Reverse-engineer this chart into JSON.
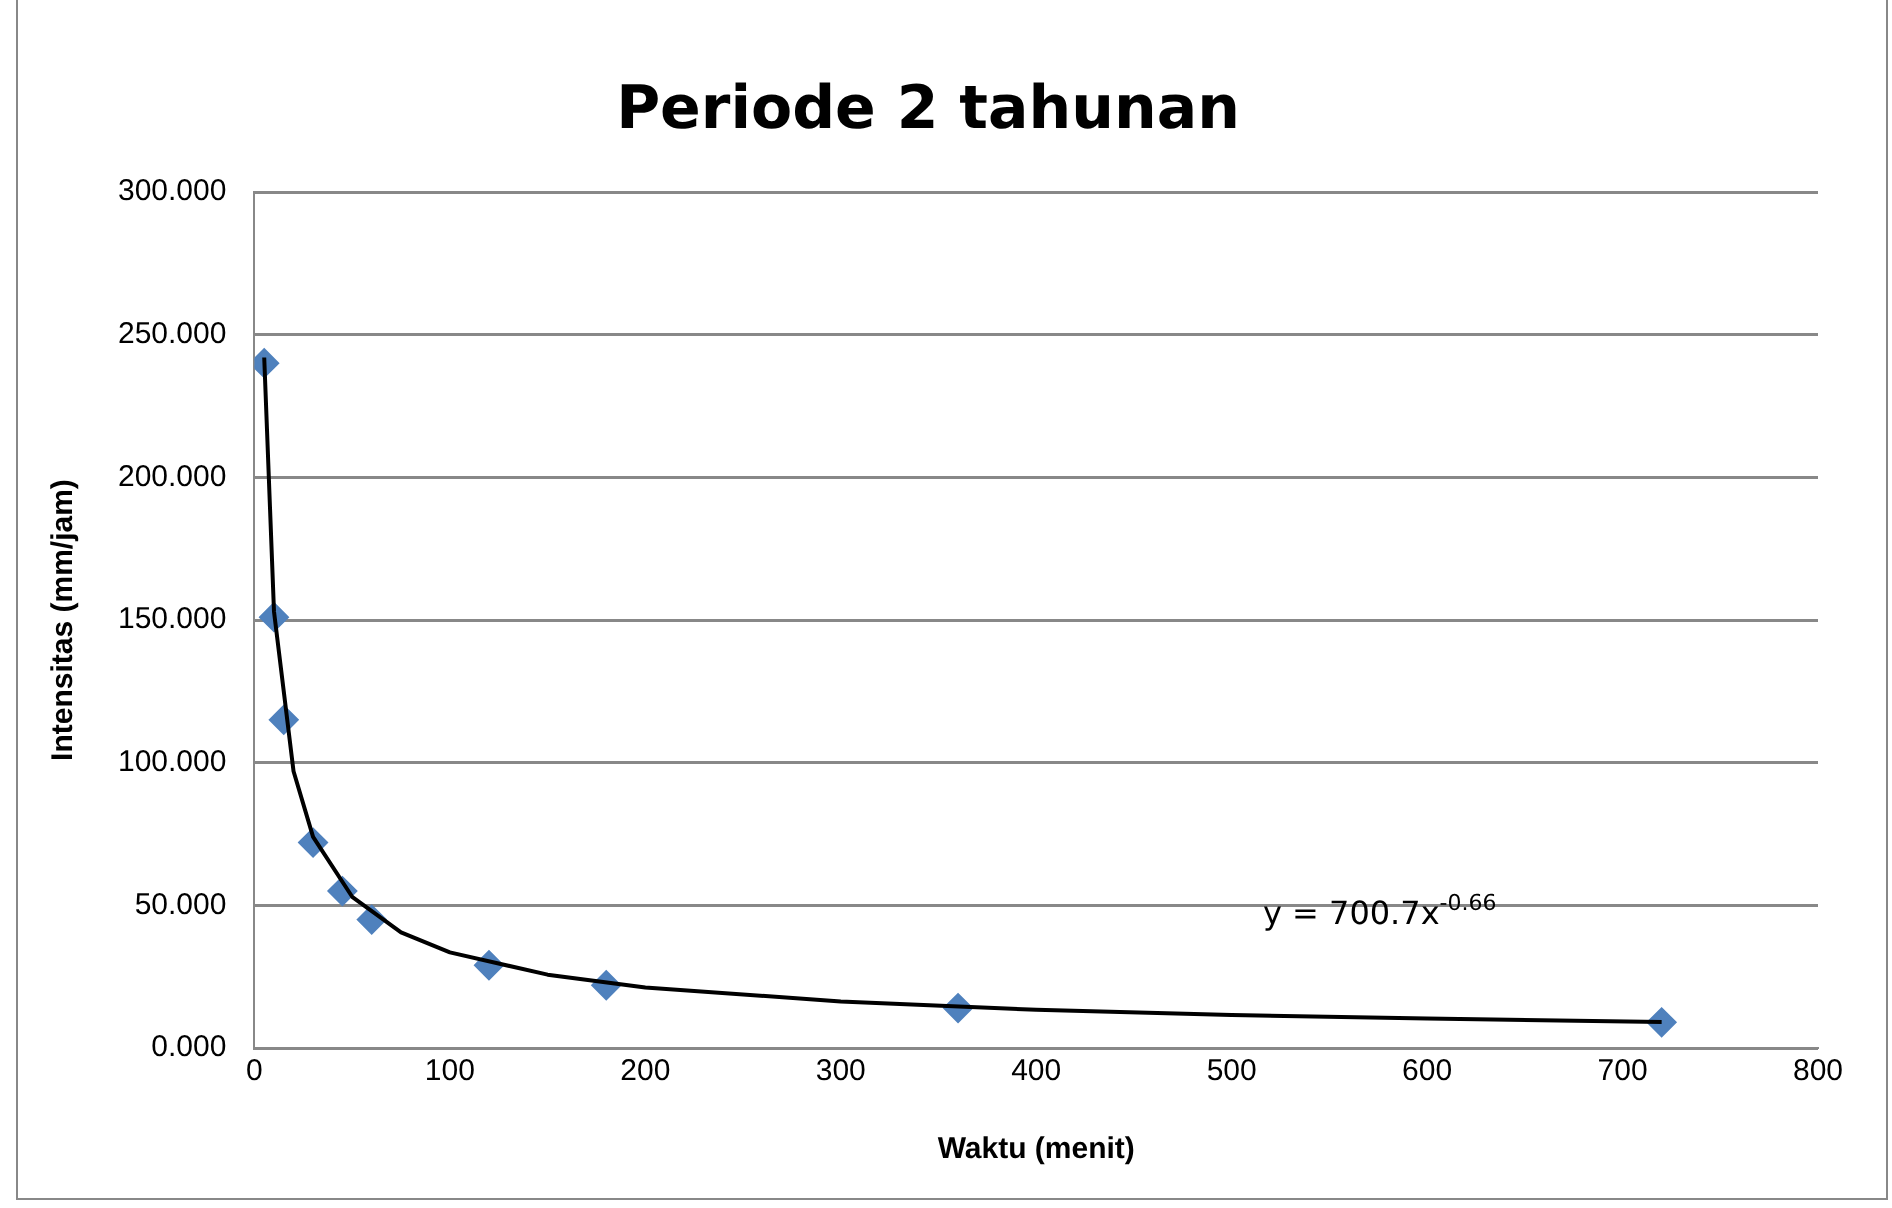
{
  "chart_data": {
    "type": "scatter",
    "title": "Periode 2 tahunan",
    "xlabel": "Waktu (menit)",
    "ylabel": "Intensitas (mm/jam)",
    "series": [
      {
        "color": "#4f81bd",
        "marker": "diamond",
        "x": [
          5,
          10,
          15,
          30,
          45,
          60,
          120,
          180,
          360,
          720
        ],
        "values": [
          240,
          151,
          115,
          72,
          55,
          45,
          29,
          22,
          14,
          9
        ]
      },
      {
        "type": "line",
        "color": "#000000",
        "marker": "none",
        "x": [
          5,
          10,
          20,
          30,
          50,
          75,
          100,
          150,
          200,
          300,
          400,
          500,
          600,
          720
        ],
        "values": [
          242,
          153,
          97,
          74,
          53,
          40.5,
          33.5,
          25.7,
          21.2,
          16.3,
          13.4,
          11.6,
          10.3,
          9.1
        ]
      }
    ],
    "xlim": [
      0,
      800
    ],
    "xticks": [
      0,
      100,
      200,
      300,
      400,
      500,
      600,
      700,
      800
    ],
    "ylim": [
      0,
      300
    ],
    "yticks": [
      {
        "value": 0,
        "label": "0.000"
      },
      {
        "value": 50,
        "label": "50.000"
      },
      {
        "value": 100,
        "label": "100.000"
      },
      {
        "value": 150,
        "label": "150.000"
      },
      {
        "value": 200,
        "label": "200.000"
      },
      {
        "value": 250,
        "label": "250.000"
      },
      {
        "value": 300,
        "label": "300.000"
      }
    ],
    "grid": "y",
    "legend": false,
    "annotations": [
      "y = 700.7x$^{-0.66}$"
    ]
  }
}
